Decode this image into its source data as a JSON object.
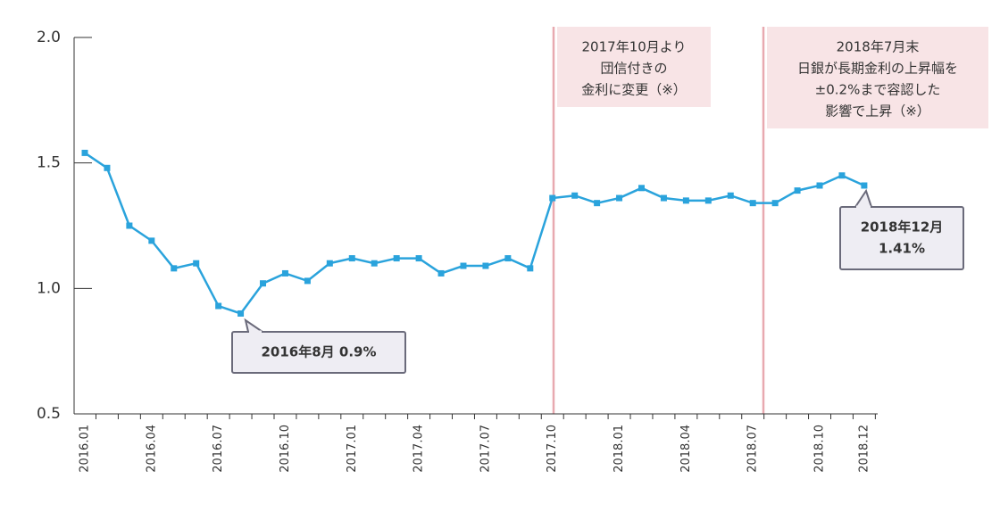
{
  "chart_data": {
    "type": "line",
    "categories": [
      "2016.01",
      null,
      null,
      "2016.04",
      null,
      null,
      "2016.07",
      null,
      null,
      "2016.10",
      null,
      null,
      "2017.01",
      null,
      null,
      "2017.04",
      null,
      null,
      "2017.07",
      null,
      null,
      "2017.10",
      null,
      null,
      "2018.01",
      null,
      null,
      "2018.04",
      null,
      null,
      "2018.07",
      null,
      null,
      "2018.10",
      null,
      "2018.12"
    ],
    "series": [
      {
        "color": "#2aa3dc",
        "values": [
          1.54,
          1.48,
          1.25,
          1.19,
          1.08,
          1.1,
          0.93,
          0.9,
          1.02,
          1.06,
          1.03,
          1.1,
          1.12,
          1.1,
          1.12,
          1.12,
          1.06,
          1.09,
          1.09,
          1.12,
          1.08,
          1.36,
          1.37,
          1.34,
          1.36,
          1.4,
          1.36,
          1.35,
          1.35,
          1.37,
          1.34,
          1.34,
          1.39,
          1.41,
          1.45,
          1.41
        ]
      }
    ],
    "ylim": [
      0.5,
      2.0
    ],
    "yticks": [
      {
        "value": 0.5,
        "label": "0.5"
      },
      {
        "value": 1.0,
        "label": "1.0"
      },
      {
        "value": 1.5,
        "label": "1.5"
      },
      {
        "value": 2.0,
        "label": "2.0"
      }
    ],
    "event_notes": [
      [
        "2017年10月より",
        "団信付きの",
        "金利に変更（※）"
      ],
      [
        "2018年7月末",
        "日銀が長期金利の上昇幅を",
        "±0.2%まで容認した",
        "影響で上昇（※）"
      ]
    ],
    "callouts": [
      [
        "2016年8月 0.9%"
      ],
      [
        "2018年12月",
        "1.41%"
      ]
    ],
    "note_color": "#e8a9b0"
  }
}
